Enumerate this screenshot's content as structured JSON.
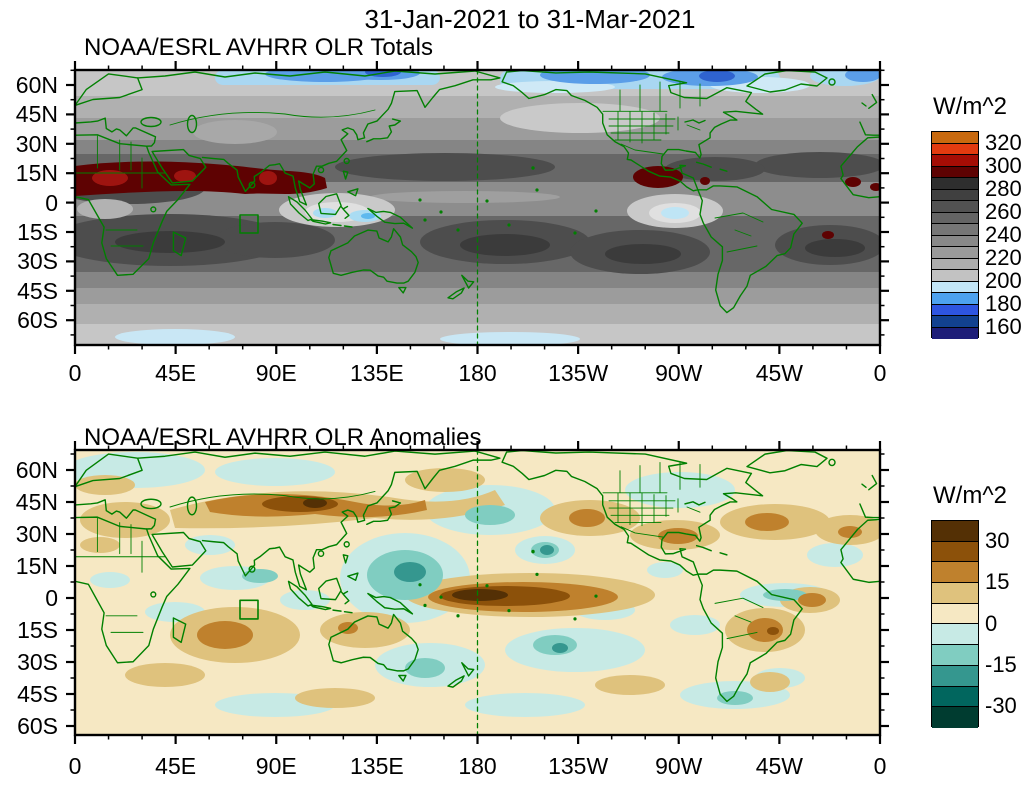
{
  "main_title": "31-Jan-2021 to 31-Mar-2021",
  "panels": [
    {
      "title": "NOAA/ESRL AVHRR OLR Totals",
      "colorbar": {
        "units": "W/m^2",
        "tick_labels": [
          "320",
          "300",
          "280",
          "260",
          "240",
          "220",
          "200",
          "180",
          "160"
        ],
        "cell_colors": [
          "#c8690e",
          "#e23b10",
          "#a50d05",
          "#5e0202",
          "#2e2e2e",
          "#404040",
          "#525252",
          "#646464",
          "#767676",
          "#888888",
          "#9a9a9a",
          "#adadad",
          "#c2c2c2",
          "#c3e6f7",
          "#4da2ef",
          "#2e55e0",
          "#12418f",
          "#1d1d78"
        ]
      }
    },
    {
      "title": "NOAA/ESRL AVHRR OLR Anomalies",
      "colorbar": {
        "units": "W/m^2",
        "tick_labels": [
          "30",
          "15",
          "0",
          "-15",
          "-30"
        ],
        "cell_colors": [
          "#543005",
          "#8c510a",
          "#bf812d",
          "#dfc27d",
          "#f6e8c3",
          "#c7eae5",
          "#80cdc1",
          "#35978f",
          "#01665e",
          "#003c30"
        ]
      }
    }
  ],
  "axes": {
    "lat_labels": [
      "60N",
      "45N",
      "30N",
      "15N",
      "0",
      "15S",
      "30S",
      "45S",
      "60S"
    ],
    "lon_labels": [
      "0",
      "45E",
      "90E",
      "135E",
      "180",
      "135W",
      "90W",
      "45W",
      "0"
    ]
  },
  "map": {
    "coastline_color": "#008000",
    "dateline": "dashed green meridian at 180",
    "reference_box": "green outlined box over the western Indian Ocean near 75E, 5-12S"
  },
  "chart_data": [
    {
      "type": "heatmap",
      "title": "NOAA/ESRL AVHRR OLR Totals",
      "subtitle_period": "31-Jan-2021 to 31-Mar-2021",
      "units": "W/m^2",
      "projection": "equirectangular; longitude 0 eastward through 180 back to 0 (Greenwich at both edges)",
      "lat_ticks": [
        "60N",
        "45N",
        "30N",
        "15N",
        "0",
        "15S",
        "30S",
        "45S",
        "60S"
      ],
      "lon_ticks": [
        "0",
        "45E",
        "90E",
        "135E",
        "180",
        "135W",
        "90W",
        "45W",
        "0"
      ],
      "contour_levels_wm2": [
        150,
        160,
        170,
        180,
        190,
        200,
        210,
        220,
        230,
        240,
        250,
        260,
        270,
        280,
        290,
        300,
        310,
        320,
        330
      ],
      "legend_ticks_wm2": [
        320,
        300,
        280,
        260,
        240,
        220,
        200,
        180,
        160
      ],
      "palette_top_to_bottom": [
        "#c8690e",
        "#e23b10",
        "#a50d05",
        "#5e0202",
        "#2e2e2e",
        "#404040",
        "#525252",
        "#646464",
        "#767676",
        "#888888",
        "#9a9a9a",
        "#adadad",
        "#c2c2c2",
        "#c3e6f7",
        "#4da2ef",
        "#2e55e0",
        "#12418f",
        "#1d1d78"
      ],
      "features": [
        "dark-red band (OLR > 280 W/m^2) across the Sahara, Arabia and India near 10-20N",
        "dark-red maximum over southern Mexico / Central America and small spots near Venezuela, the South Atlantic and West Africa",
        "blue shading (OLR < 200 W/m^2) along high northern latitudes of Siberia and arctic Canada",
        "light gray with pale-blue cores (deep convection) over the Maritime Continent and the Amazon basin",
        "dark gray subtropical maxima over the south Indian, South Pacific, southeast Pacific and South Atlantic oceans"
      ]
    },
    {
      "type": "heatmap",
      "title": "NOAA/ESRL AVHRR OLR Anomalies",
      "subtitle_period": "31-Jan-2021 to 31-Mar-2021",
      "units": "W/m^2",
      "projection": "equirectangular; longitude 0 eastward through 180 back to 0 (Greenwich at both edges)",
      "lat_ticks": [
        "60N",
        "45N",
        "30N",
        "15N",
        "0",
        "15S",
        "30S",
        "45S",
        "60S"
      ],
      "lon_ticks": [
        "0",
        "45E",
        "90E",
        "135E",
        "180",
        "135W",
        "90W",
        "45W",
        "0"
      ],
      "contour_levels_wm2": [
        -37.5,
        -30,
        -22.5,
        -15,
        -7.5,
        0,
        7.5,
        15,
        22.5,
        30,
        37.5
      ],
      "legend_ticks_wm2": [
        30,
        15,
        0,
        -15,
        -30
      ],
      "palette_top_to_bottom": [
        "#543005",
        "#8c510a",
        "#bf812d",
        "#dfc27d",
        "#f6e8c3",
        "#c7eae5",
        "#80cdc1",
        "#35978f",
        "#01665e",
        "#003c30"
      ],
      "features": [
        "strong positive anomalies (> +30 W/m^2, dark brown) along the equator near and east of the dateline (suppressed convection)",
        "positive anomaly band along ~30N from the Middle East across Tibet (dark core) to Japan",
        "negative anomalies (teal) over the Philippine Sea / western North Pacific with a dark core",
        "positive anomalies over the south-central Indian Ocean, western North America, Mexico/Gulf, subtropical North Atlantic and southeastern South America",
        "weak negative anomalies scattered over northern Eurasia, the South Pacific, Tasman Sea and equatorial Atlantic"
      ]
    }
  ]
}
